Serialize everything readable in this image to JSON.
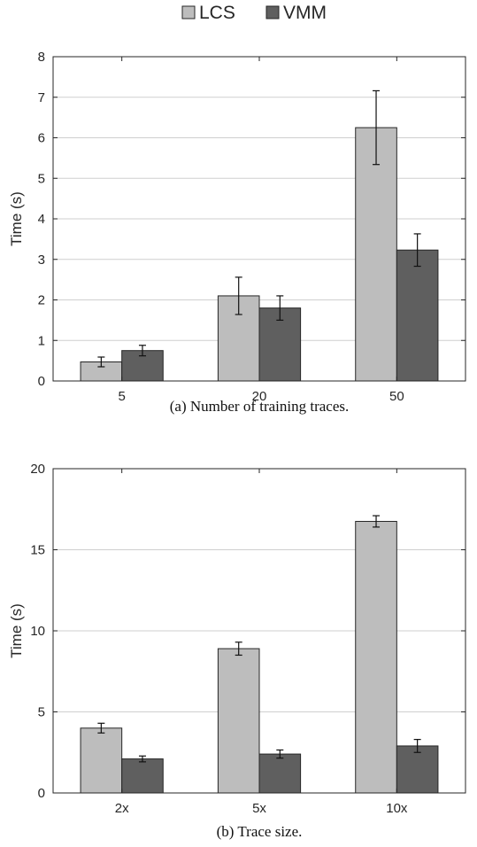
{
  "legend": {
    "entries": [
      {
        "name": "LCS",
        "color": "#bdbdbd"
      },
      {
        "name": "VMM",
        "color": "#5f5f5f"
      }
    ]
  },
  "chart_data": [
    {
      "type": "bar",
      "caption": "(a) Number of training traces.",
      "ylabel": "Time (s)",
      "xlabel": "",
      "categories": [
        "5",
        "20",
        "50"
      ],
      "ylim": [
        0,
        8
      ],
      "yticks": [
        0,
        1,
        2,
        3,
        4,
        5,
        6,
        7,
        8
      ],
      "grid": "horizontal",
      "legend": "top-center",
      "series": [
        {
          "name": "LCS",
          "color": "#bdbdbd",
          "values": [
            0.47,
            2.1,
            6.25
          ],
          "errors": [
            0.12,
            0.46,
            0.91
          ]
        },
        {
          "name": "VMM",
          "color": "#5f5f5f",
          "values": [
            0.75,
            1.8,
            3.23
          ],
          "errors": [
            0.13,
            0.3,
            0.4
          ]
        }
      ]
    },
    {
      "type": "bar",
      "caption": "(b) Trace size.",
      "ylabel": "Time (s)",
      "xlabel": "",
      "categories": [
        "2x",
        "5x",
        "10x"
      ],
      "ylim": [
        0,
        20
      ],
      "yticks": [
        0,
        5,
        10,
        15,
        20
      ],
      "grid": "horizontal",
      "legend": "top-center",
      "series": [
        {
          "name": "LCS",
          "color": "#bdbdbd",
          "values": [
            4.0,
            8.9,
            16.75
          ],
          "errors": [
            0.3,
            0.4,
            0.35
          ]
        },
        {
          "name": "VMM",
          "color": "#5f5f5f",
          "values": [
            2.1,
            2.4,
            2.9
          ],
          "errors": [
            0.18,
            0.25,
            0.4
          ]
        }
      ]
    }
  ]
}
